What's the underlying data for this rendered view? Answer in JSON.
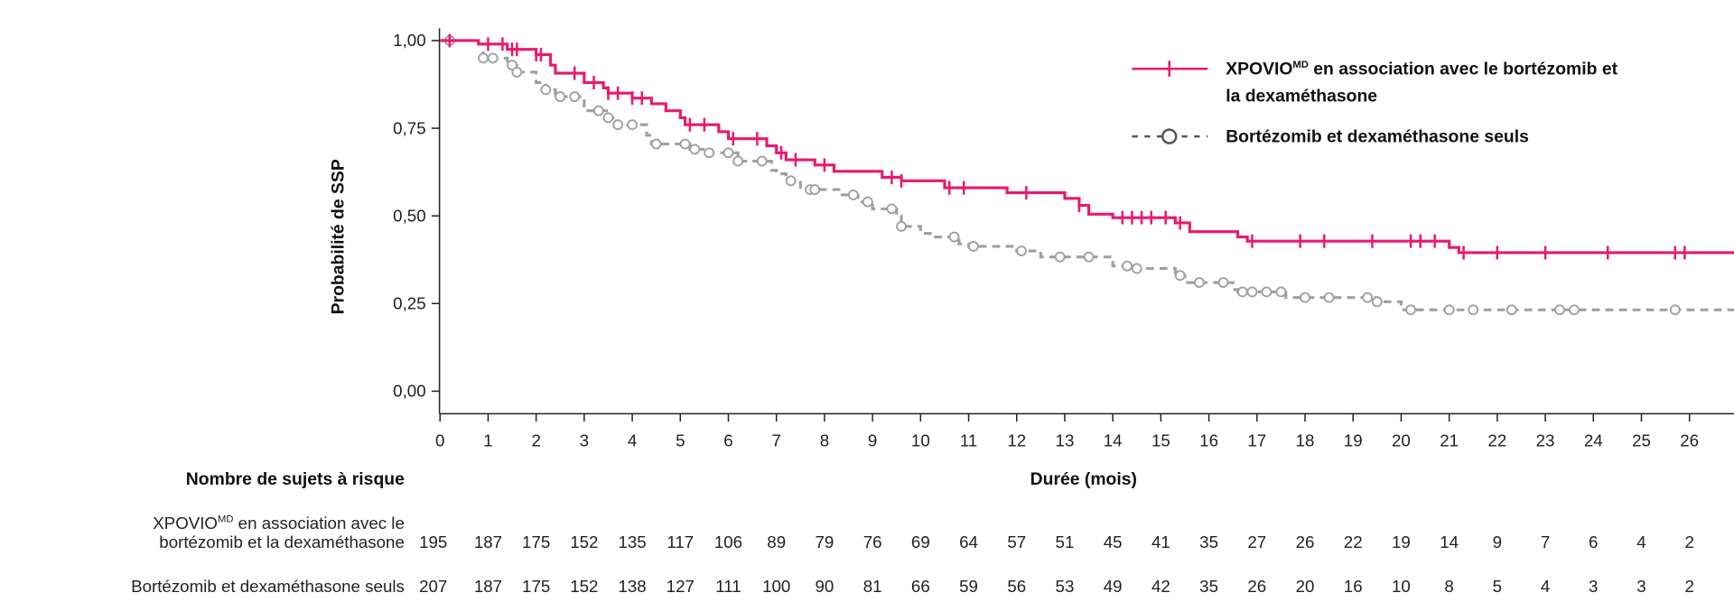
{
  "chart_data": {
    "type": "line",
    "subtype": "kaplan-meier",
    "ylabel": "Probabilité de SSP",
    "xlabel": "Durée (mois)",
    "xlim": [
      0,
      27
    ],
    "ylim": [
      0,
      1
    ],
    "x_ticks": [
      0,
      1,
      2,
      3,
      4,
      5,
      6,
      7,
      8,
      9,
      10,
      11,
      12,
      13,
      14,
      15,
      16,
      17,
      18,
      19,
      20,
      21,
      22,
      23,
      24,
      25,
      26
    ],
    "y_ticks": [
      {
        "value": 0,
        "label": "0,00"
      },
      {
        "value": 0.25,
        "label": "0,25"
      },
      {
        "value": 0.5,
        "label": "0,50"
      },
      {
        "value": 0.75,
        "label": "0,75"
      },
      {
        "value": 1,
        "label": "1,00"
      }
    ],
    "grid": false,
    "legend_position": "top-right",
    "series": [
      {
        "name_main": "XPOVIO",
        "name_sup": "MD",
        "name_rest_line1": " en association avec le bortézomib et",
        "name_line2": "la dexaméthasone",
        "color": "#E8196F",
        "style": "solid",
        "censor_marker": "tick",
        "steps": [
          [
            0,
            1.0
          ],
          [
            0.8,
            0.99
          ],
          [
            1.4,
            0.975
          ],
          [
            2.0,
            0.96
          ],
          [
            2.3,
            0.93
          ],
          [
            2.4,
            0.907
          ],
          [
            3.0,
            0.88
          ],
          [
            3.4,
            0.865
          ],
          [
            3.5,
            0.85
          ],
          [
            4.0,
            0.836
          ],
          [
            4.4,
            0.82
          ],
          [
            4.7,
            0.8
          ],
          [
            5.0,
            0.78
          ],
          [
            5.1,
            0.76
          ],
          [
            5.8,
            0.74
          ],
          [
            6.0,
            0.72
          ],
          [
            6.8,
            0.7
          ],
          [
            7.0,
            0.68
          ],
          [
            7.2,
            0.66
          ],
          [
            7.8,
            0.645
          ],
          [
            8.2,
            0.627
          ],
          [
            9.2,
            0.61
          ],
          [
            9.6,
            0.6
          ],
          [
            10.5,
            0.58
          ],
          [
            11.8,
            0.566
          ],
          [
            13.0,
            0.55
          ],
          [
            13.3,
            0.53
          ],
          [
            13.5,
            0.505
          ],
          [
            14.0,
            0.495
          ],
          [
            15.3,
            0.48
          ],
          [
            15.6,
            0.455
          ],
          [
            16.6,
            0.44
          ],
          [
            16.8,
            0.428
          ],
          [
            21.0,
            0.41
          ],
          [
            21.2,
            0.395
          ],
          [
            27,
            0.395
          ]
        ],
        "censored": [
          0.2,
          1.0,
          1.3,
          1.5,
          1.6,
          2.0,
          2.1,
          2.8,
          3.2,
          3.5,
          3.7,
          4.0,
          4.2,
          5.2,
          5.5,
          6.1,
          6.6,
          7.1,
          7.4,
          8.0,
          9.4,
          9.6,
          10.6,
          10.9,
          12.2,
          13.3,
          14.2,
          14.4,
          14.6,
          14.8,
          15.1,
          15.4,
          16.9,
          17.9,
          18.4,
          19.4,
          20.2,
          20.4,
          20.7,
          21.3,
          22.0,
          23.0,
          24.3,
          25.7,
          25.9
        ]
      },
      {
        "name": "Bortézomib et dexaméthasone seuls",
        "color": "#A0A0A0",
        "style": "dashed",
        "censor_marker": "circle",
        "steps": [
          [
            0,
            1.0
          ],
          [
            0.7,
            0.99
          ],
          [
            0.9,
            0.95
          ],
          [
            1.4,
            0.93
          ],
          [
            1.6,
            0.91
          ],
          [
            2.0,
            0.88
          ],
          [
            2.2,
            0.86
          ],
          [
            2.4,
            0.84
          ],
          [
            3.0,
            0.8
          ],
          [
            3.5,
            0.78
          ],
          [
            3.6,
            0.76
          ],
          [
            4.3,
            0.73
          ],
          [
            4.4,
            0.705
          ],
          [
            5.2,
            0.69
          ],
          [
            5.6,
            0.68
          ],
          [
            6.2,
            0.656
          ],
          [
            6.9,
            0.63
          ],
          [
            7.0,
            0.62
          ],
          [
            7.2,
            0.6
          ],
          [
            7.5,
            0.575
          ],
          [
            8.3,
            0.56
          ],
          [
            8.7,
            0.54
          ],
          [
            9.0,
            0.52
          ],
          [
            9.5,
            0.5
          ],
          [
            9.6,
            0.47
          ],
          [
            10.0,
            0.45
          ],
          [
            10.2,
            0.44
          ],
          [
            10.8,
            0.42
          ],
          [
            11.0,
            0.413
          ],
          [
            12.0,
            0.4
          ],
          [
            12.5,
            0.383
          ],
          [
            14.0,
            0.357
          ],
          [
            14.5,
            0.35
          ],
          [
            15.3,
            0.33
          ],
          [
            15.5,
            0.31
          ],
          [
            16.5,
            0.29
          ],
          [
            16.6,
            0.283
          ],
          [
            17.6,
            0.267
          ],
          [
            19.5,
            0.255
          ],
          [
            20.0,
            0.232
          ],
          [
            27,
            0.232
          ]
        ],
        "censored": [
          0.2,
          0.9,
          1.1,
          1.5,
          1.6,
          2.2,
          2.5,
          2.8,
          3.3,
          3.5,
          3.7,
          4.0,
          4.5,
          5.1,
          5.3,
          5.6,
          6.0,
          6.2,
          6.7,
          7.3,
          7.7,
          7.8,
          8.6,
          8.9,
          9.4,
          9.6,
          10.7,
          11.1,
          12.1,
          12.9,
          13.5,
          14.3,
          14.5,
          15.4,
          15.8,
          16.3,
          16.7,
          16.9,
          17.2,
          17.5,
          18.0,
          18.5,
          19.3,
          19.5,
          20.2,
          21.0,
          21.5,
          22.3,
          23.3,
          23.6,
          25.7
        ]
      }
    ]
  },
  "risk_table": {
    "title": "Nombre de sujets à risque",
    "rows": [
      {
        "label_line1_main": "XPOVIO",
        "label_line1_sup": "MD",
        "label_line1_rest": " en association avec le",
        "label_line2": "bortézomib et la dexaméthasone",
        "values": [
          "195",
          "187",
          "175",
          "152",
          "135",
          "117",
          "106",
          "89",
          "79",
          "76",
          "69",
          "64",
          "57",
          "51",
          "45",
          "41",
          "35",
          "27",
          "26",
          "22",
          "19",
          "14",
          "9",
          "7",
          "6",
          "4",
          "2"
        ]
      },
      {
        "label": "Bortézomib et dexaméthasone seuls",
        "values": [
          "207",
          "187",
          "175",
          "152",
          "138",
          "127",
          "111",
          "100",
          "90",
          "81",
          "66",
          "59",
          "56",
          "53",
          "49",
          "42",
          "35",
          "26",
          "20",
          "16",
          "10",
          "8",
          "5",
          "4",
          "3",
          "3",
          "2"
        ]
      }
    ]
  }
}
